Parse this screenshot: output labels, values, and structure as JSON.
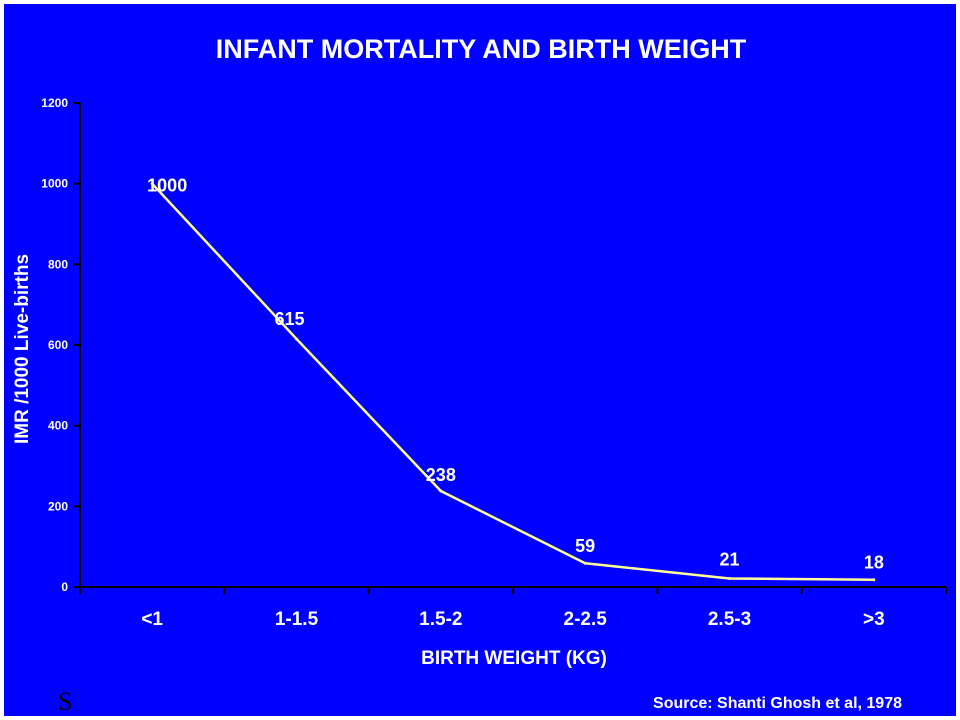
{
  "chart_data": {
    "type": "line",
    "title": "INFANT MORTALITY AND BIRTH WEIGHT",
    "xlabel": "BIRTH WEIGHT (KG)",
    "ylabel": "IMR /1000 Live-births",
    "categories": [
      "<1",
      "1-1.5",
      "1.5-2",
      "2-2.5",
      "2.5-3",
      ">3"
    ],
    "series": [
      {
        "values": [
          1000,
          615,
          238,
          59,
          21,
          18
        ]
      }
    ],
    "data_labels": [
      "1000",
      "615",
      "238",
      "59",
      "21",
      "18"
    ],
    "ylim": [
      0,
      1200
    ],
    "yticks": [
      0,
      200,
      400,
      600,
      800,
      1000,
      1200
    ],
    "grid": false,
    "line_color": "#ffff99",
    "background_color": "#0000ff",
    "text_color": "#ffffff"
  },
  "footer": {
    "source": "Source: Shanti Ghosh et al, 1978",
    "mark": "S"
  }
}
